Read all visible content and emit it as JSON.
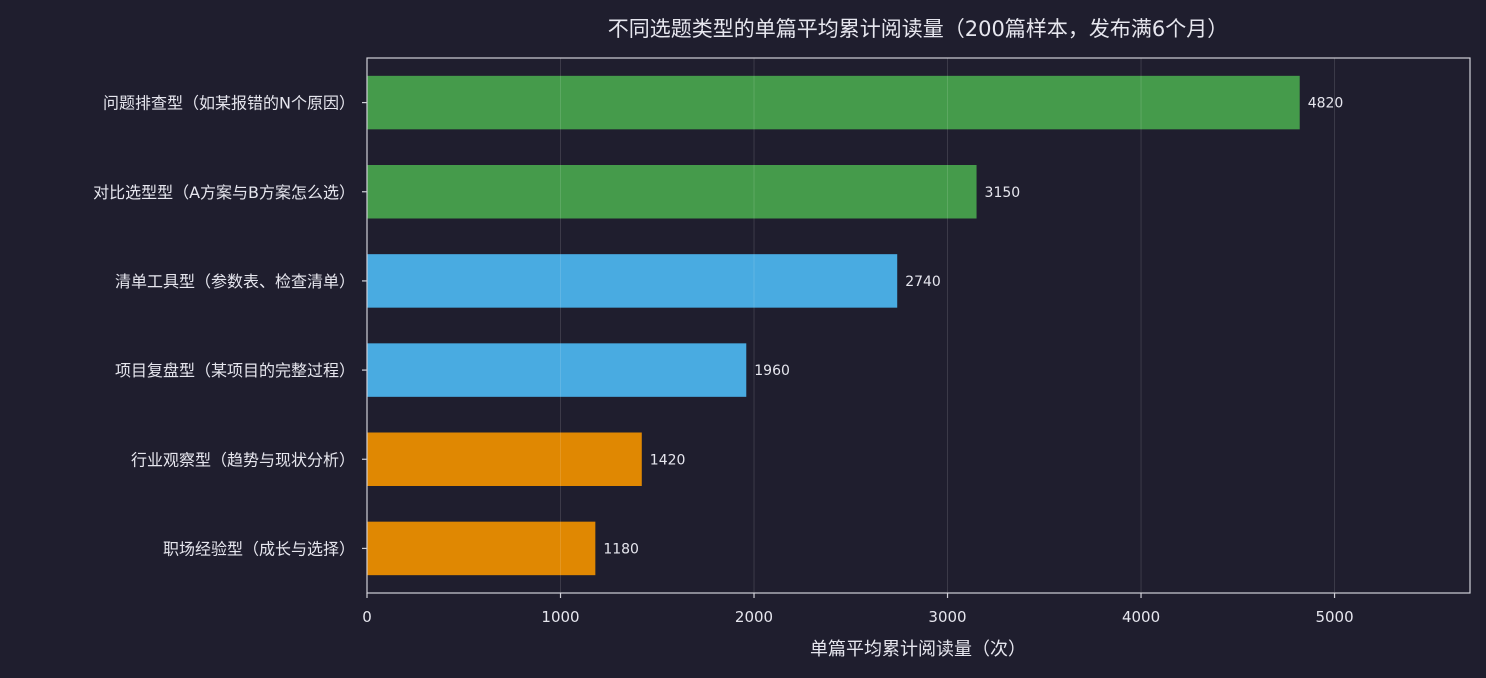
{
  "chart_data": {
    "type": "bar",
    "orientation": "horizontal",
    "title": "不同选题类型的单篇平均累计阅读量（200篇样本，发布满6个月）",
    "xlabel": "单篇平均累计阅读量（次）",
    "ylabel": "",
    "xlim": [
      0,
      5700
    ],
    "xticks": [
      0,
      1000,
      2000,
      3000,
      4000,
      5000
    ],
    "grid": true,
    "categories": [
      "问题排查型（如某报错的N个原因）",
      "对比选型型（A方案与B方案怎么选）",
      "清单工具型（参数表、检查清单）",
      "项目复盘型（某项目的完整过程）",
      "行业观察型（趋势与现状分析）",
      "职场经验型（成长与选择）"
    ],
    "values": [
      4820,
      3150,
      2740,
      1960,
      1420,
      1180
    ],
    "colors": [
      "#459b4b",
      "#459b4b",
      "#49abe1",
      "#49abe1",
      "#e08802",
      "#e08802"
    ],
    "value_labels": [
      "4820",
      "3150",
      "2740",
      "1960",
      "1420",
      "1180"
    ]
  },
  "colors": {
    "background": "#1f1e2e",
    "text": "#e6e6ee",
    "axis": "#d0d0d8"
  }
}
